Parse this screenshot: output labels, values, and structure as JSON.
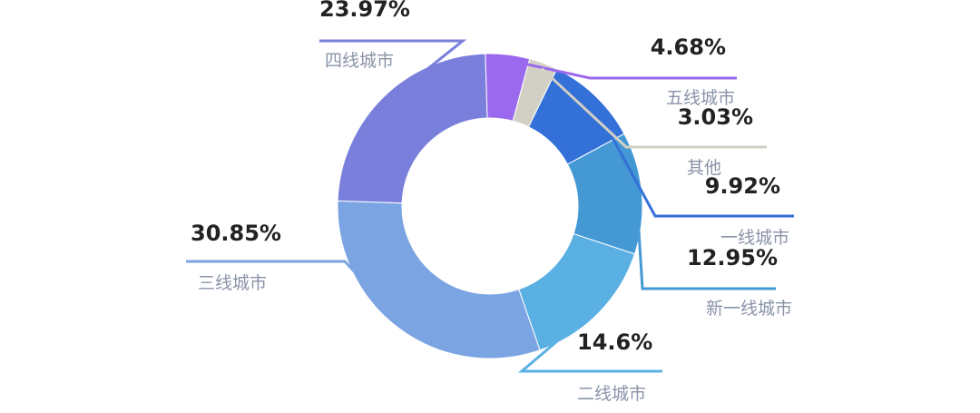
{
  "chart_data": {
    "type": "pie",
    "donut": true,
    "title": "",
    "slices": [
      {
        "label": "一线城市",
        "value": 9.92,
        "display": "9.92%",
        "color": "#3370d8"
      },
      {
        "label": "新一线城市",
        "value": 12.95,
        "display": "12.95%",
        "color": "#4498d4"
      },
      {
        "label": "二线城市",
        "value": 14.6,
        "display": "14.6%",
        "color": "#5ab0e3"
      },
      {
        "label": "三线城市",
        "value": 30.85,
        "display": "30.85%",
        "color": "#7aa4e2"
      },
      {
        "label": "四线城市",
        "value": 23.97,
        "display": "23.97%",
        "color": "#7a7fdc"
      },
      {
        "label": "五线城市",
        "value": 4.68,
        "display": "4.68%",
        "color": "#9b69ee"
      },
      {
        "label": "其他",
        "value": 3.03,
        "display": "3.03%",
        "color": "#d2cfc4"
      }
    ]
  }
}
